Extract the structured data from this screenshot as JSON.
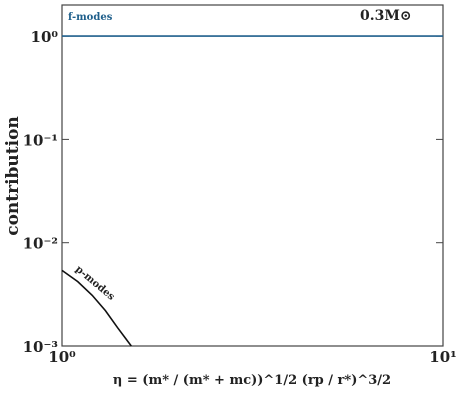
{
  "chart_data": {
    "type": "line",
    "x_label": "η = (m* / (m* + mc))^1/2 (rp / r*)^3/2",
    "y_label": "contribution",
    "annotations": [
      "f-modes",
      "p-modes",
      "0.3M⊙"
    ],
    "xscale": "log",
    "yscale": "log",
    "xlim": [
      1,
      10
    ],
    "ylim": [
      0.001,
      2
    ],
    "xticks": [
      {
        "value": 1,
        "label": "10⁰"
      },
      {
        "value": 10,
        "label": "10¹"
      }
    ],
    "yticks": [
      {
        "value": 0.001,
        "label": "10⁻³"
      },
      {
        "value": 0.01,
        "label": "10⁻²"
      },
      {
        "value": 0.1,
        "label": "10⁻¹"
      },
      {
        "value": 1,
        "label": "10⁰"
      }
    ],
    "series": [
      {
        "name": "f-modes",
        "color": "#1f5f8b",
        "x": [
          1,
          10
        ],
        "values": [
          1,
          1
        ]
      },
      {
        "name": "p-modes",
        "color": "#111111",
        "x": [
          1,
          1.1,
          1.2,
          1.3,
          1.4,
          1.52
        ],
        "values": [
          0.0054,
          0.0042,
          0.0031,
          0.0022,
          0.0015,
          0.001
        ]
      }
    ]
  }
}
